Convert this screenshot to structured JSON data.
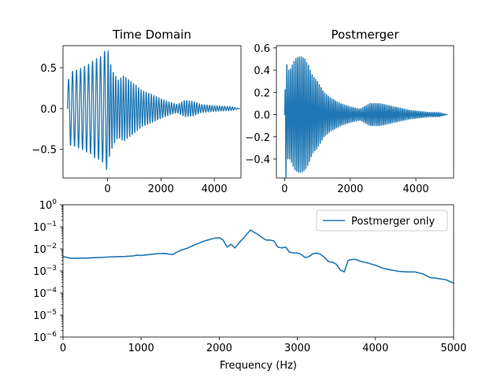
{
  "chart_data": [
    {
      "type": "line",
      "title": "Time Domain",
      "xlabel": "",
      "ylabel": "",
      "xlim": [
        -1670,
        5000
      ],
      "ylim": [
        -0.85,
        0.77
      ],
      "xticks": [
        0,
        2000,
        4000
      ],
      "xtick_labels": [
        "0",
        "2000",
        "4000"
      ],
      "yticks": [
        -0.5,
        0.0,
        0.5
      ],
      "ytick_labels": [
        "−0.5",
        "0.0",
        "0.5"
      ],
      "grid": false,
      "series": [
        {
          "color": "#1f77b4",
          "x": [
            -1500,
            -1400,
            -1250,
            -1100,
            -950,
            -800,
            -650,
            -500,
            -350,
            -200,
            -80,
            0,
            60,
            200,
            400,
            600,
            800,
            1000,
            1300,
            1600,
            2000,
            2300,
            2600,
            2900,
            3200,
            3500,
            3800,
            4200,
            4600,
            4950
          ],
          "y": [
            0.3,
            -0.45,
            0.46,
            -0.48,
            0.5,
            -0.53,
            0.55,
            -0.6,
            0.62,
            -0.65,
            0.72,
            -0.77,
            0.6,
            -0.45,
            0.35,
            -0.4,
            0.35,
            -0.3,
            0.22,
            -0.18,
            0.12,
            -0.08,
            0.05,
            -0.1,
            0.09,
            -0.05,
            0.04,
            -0.03,
            0.025,
            0.0
          ]
        }
      ]
    },
    {
      "type": "line",
      "title": "Postmerger",
      "xlabel": "",
      "ylabel": "",
      "xlim": [
        -250,
        5150
      ],
      "ylim": [
        -0.57,
        0.62
      ],
      "xticks": [
        0,
        2000,
        4000
      ],
      "xtick_labels": [
        "0",
        "2000",
        "4000"
      ],
      "yticks": [
        -0.4,
        -0.2,
        0.0,
        0.2,
        0.4,
        0.6
      ],
      "ytick_labels": [
        "−0.4",
        "−0.2",
        "0.0",
        "0.2",
        "0.4",
        "0.6"
      ],
      "grid": false,
      "series": [
        {
          "color": "#1f77b4",
          "x": [
            0,
            40,
            80,
            160,
            240,
            320,
            420,
            520,
            620,
            720,
            850,
            1000,
            1200,
            1400,
            1700,
            2000,
            2300,
            2600,
            2900,
            3200,
            3500,
            3800,
            4100,
            4400,
            4700,
            4950
          ],
          "y": [
            0.0,
            0.57,
            -0.4,
            0.4,
            -0.45,
            0.5,
            -0.52,
            0.52,
            -0.5,
            0.45,
            -0.35,
            0.3,
            -0.2,
            0.15,
            -0.1,
            0.07,
            -0.05,
            0.1,
            -0.1,
            0.08,
            -0.06,
            0.04,
            -0.03,
            0.02,
            -0.02,
            0.0
          ]
        }
      ]
    },
    {
      "type": "line",
      "title": "",
      "xlabel": "Frequency (Hz)",
      "ylabel": "",
      "xlim": [
        0,
        5000
      ],
      "ylim": [
        1e-06,
        1
      ],
      "yscale": "log",
      "xticks": [
        0,
        1000,
        2000,
        3000,
        4000,
        5000
      ],
      "xtick_labels": [
        "0",
        "1000",
        "2000",
        "3000",
        "4000",
        "5000"
      ],
      "yticks": [
        1e-06,
        1e-05,
        0.0001,
        0.001,
        0.01,
        0.1,
        1
      ],
      "grid": false,
      "legend_position": "top-right",
      "series": [
        {
          "name": "Postmerger only",
          "color": "#1f77b4",
          "x": [
            0,
            100,
            200,
            300,
            400,
            500,
            600,
            700,
            800,
            900,
            950,
            1000,
            1100,
            1200,
            1300,
            1400,
            1500,
            1600,
            1700,
            1800,
            1900,
            1950,
            2000,
            2050,
            2100,
            2150,
            2200,
            2250,
            2300,
            2350,
            2400,
            2450,
            2500,
            2550,
            2600,
            2650,
            2700,
            2750,
            2800,
            2850,
            2900,
            2950,
            3000,
            3050,
            3100,
            3150,
            3200,
            3250,
            3300,
            3350,
            3400,
            3450,
            3500,
            3550,
            3600,
            3650,
            3700,
            3750,
            3800,
            3850,
            3900,
            4000,
            4100,
            4200,
            4300,
            4400,
            4500,
            4600,
            4700,
            4800,
            4900,
            5000
          ],
          "y": [
            0.0045,
            0.0037,
            0.0038,
            0.0038,
            0.004,
            0.0041,
            0.0043,
            0.0044,
            0.0045,
            0.0048,
            0.0052,
            0.005,
            0.0055,
            0.006,
            0.0062,
            0.0055,
            0.0085,
            0.011,
            0.016,
            0.022,
            0.028,
            0.031,
            0.032,
            0.025,
            0.012,
            0.016,
            0.011,
            0.018,
            0.028,
            0.045,
            0.072,
            0.055,
            0.045,
            0.032,
            0.025,
            0.025,
            0.023,
            0.012,
            0.011,
            0.012,
            0.007,
            0.0065,
            0.0065,
            0.0055,
            0.004,
            0.0045,
            0.006,
            0.0065,
            0.0055,
            0.004,
            0.0026,
            0.0025,
            0.002,
            0.0011,
            0.0009,
            0.003,
            0.0033,
            0.0033,
            0.0028,
            0.0025,
            0.0023,
            0.0018,
            0.0013,
            0.0011,
            0.00095,
            0.0009,
            0.0009,
            0.00075,
            0.0005,
            0.00045,
            0.0004,
            0.00028
          ]
        }
      ]
    }
  ]
}
